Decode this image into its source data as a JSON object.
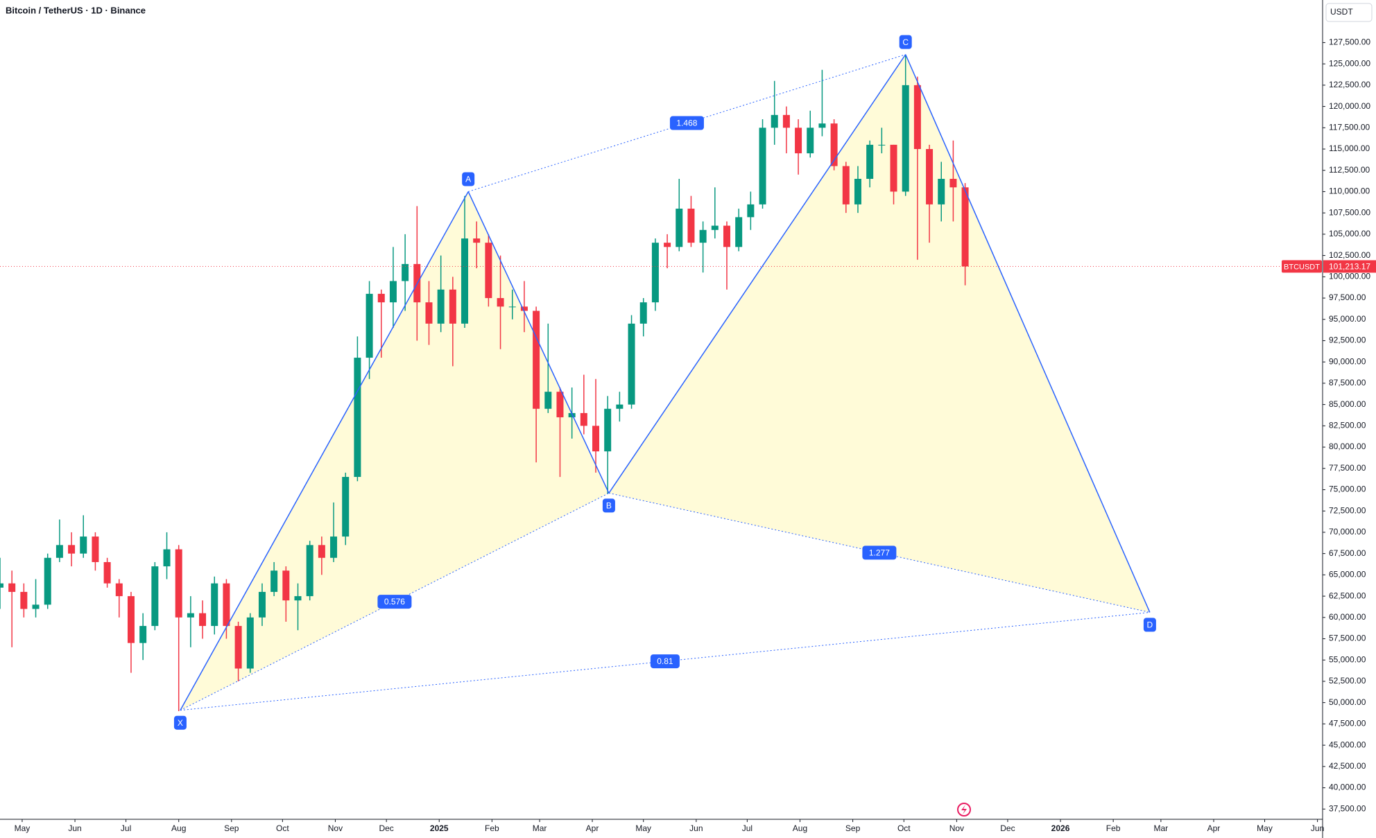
{
  "chart_data": {
    "type": "candlestick",
    "title": "Bitcoin / TetherUS · 1D · Binance",
    "currency": "USDT",
    "symbol": "BTCUSDT",
    "last_price": 101213.17,
    "last_price_label": "101,213.17",
    "up_color": "#089981",
    "down_color": "#f23645",
    "pattern_color": "#2962ff",
    "grid": false,
    "categories": [
      null,
      null,
      null,
      null,
      null,
      null,
      null,
      null,
      null,
      null,
      null,
      null,
      null,
      null,
      null,
      null,
      null,
      null,
      null,
      null,
      null,
      null,
      null,
      null,
      null,
      null,
      null,
      null,
      null,
      null,
      null,
      null,
      null,
      null,
      null,
      null,
      null,
      null,
      null,
      null,
      null,
      null,
      null,
      null,
      null,
      null,
      null,
      null,
      null,
      null,
      null,
      null,
      null,
      null,
      null,
      null,
      null,
      null,
      null,
      null,
      null,
      null,
      null,
      null,
      null,
      null,
      null,
      null,
      null,
      null,
      null,
      null,
      null,
      null,
      null,
      null,
      null,
      null,
      null,
      null,
      null,
      null
    ],
    "open": [
      63500,
      64000,
      63000,
      61000,
      61500,
      67000,
      68500,
      67500,
      69500,
      66500,
      64000,
      62500,
      57000,
      59000,
      66000,
      68000,
      60000,
      60500,
      59000,
      64000,
      59000,
      54000,
      60000,
      63000,
      65500,
      62000,
      62500,
      68500,
      67000,
      69500,
      76500,
      90500,
      98000,
      97000,
      99500,
      101500,
      97000,
      94500,
      98500,
      94500,
      104500,
      104000,
      97500,
      96500,
      96500,
      96000,
      84500,
      86500,
      83500,
      84000,
      82500,
      79500,
      84500,
      85000,
      94500,
      97000,
      104000,
      103500,
      108000,
      104000,
      105500,
      106000,
      103500,
      107000,
      108500,
      117500,
      119000,
      117500,
      114500,
      117500,
      118000,
      113000,
      108500,
      111500,
      115500,
      115500,
      110000,
      122500,
      115000,
      108500,
      111500,
      110500
    ],
    "high": [
      67000,
      65500,
      64000,
      64500,
      67500,
      71500,
      70000,
      72000,
      70000,
      67000,
      64500,
      63000,
      60500,
      66500,
      70000,
      68500,
      62500,
      62000,
      64800,
      64500,
      59500,
      60500,
      64000,
      66500,
      66000,
      64000,
      69000,
      69500,
      73500,
      77000,
      93000,
      99500,
      98500,
      103500,
      105000,
      108300,
      99500,
      102500,
      100000,
      109500,
      106500,
      105000,
      102500,
      98500,
      99500,
      96500,
      94500,
      87000,
      87000,
      88500,
      88000,
      86000,
      86500,
      95500,
      97500,
      104500,
      105000,
      111500,
      109500,
      106500,
      110500,
      106500,
      108000,
      110000,
      118500,
      123000,
      120000,
      118500,
      119500,
      124300,
      118500,
      113500,
      113000,
      116000,
      117500,
      115500,
      126100,
      123500,
      115500,
      113500,
      116000,
      111000
    ],
    "low": [
      61000,
      56500,
      60000,
      60000,
      61000,
      66500,
      66000,
      67000,
      65500,
      63500,
      60000,
      53500,
      55000,
      58500,
      64500,
      49000,
      56500,
      57500,
      58000,
      57500,
      52500,
      53500,
      59000,
      62500,
      59500,
      58500,
      62000,
      65000,
      66500,
      68500,
      76000,
      88000,
      90500,
      94000,
      96000,
      92500,
      92000,
      93500,
      89500,
      94000,
      101000,
      96500,
      91500,
      95000,
      93500,
      78200,
      84000,
      76500,
      81000,
      81500,
      77000,
      74500,
      83000,
      84500,
      93000,
      96000,
      101000,
      103000,
      103500,
      100500,
      104500,
      98500,
      103000,
      105500,
      108000,
      115500,
      114500,
      112000,
      114000,
      116500,
      112500,
      107500,
      107500,
      110500,
      114500,
      108500,
      109500,
      102000,
      104000,
      106500,
      106500,
      99000
    ],
    "close": [
      64000,
      63000,
      61000,
      61500,
      67000,
      68500,
      67500,
      69500,
      66500,
      64000,
      62500,
      57000,
      59000,
      66000,
      68000,
      60000,
      60500,
      59000,
      64000,
      59000,
      54000,
      60000,
      63000,
      65500,
      62000,
      62500,
      68500,
      67000,
      69500,
      76500,
      90500,
      98000,
      97000,
      99500,
      101500,
      97000,
      94500,
      98500,
      94500,
      104500,
      104000,
      97500,
      96500,
      96500,
      96000,
      84500,
      86500,
      83500,
      84000,
      82500,
      79500,
      84500,
      85000,
      94500,
      97000,
      104000,
      103500,
      108000,
      104000,
      105500,
      106000,
      103500,
      107000,
      108500,
      117500,
      119000,
      117500,
      114500,
      117500,
      118000,
      113000,
      108500,
      111500,
      115500,
      115500,
      110000,
      122500,
      115000,
      108500,
      111500,
      110500,
      101213.17
    ],
    "xlim": [
      0,
      111
    ],
    "xticks": [
      {
        "value": 1.86,
        "label": "May"
      },
      {
        "value": 6.29,
        "label": "Jun"
      },
      {
        "value": 10.57,
        "label": "Jul"
      },
      {
        "value": 15.0,
        "label": "Aug"
      },
      {
        "value": 19.43,
        "label": "Sep"
      },
      {
        "value": 23.71,
        "label": "Oct"
      },
      {
        "value": 28.14,
        "label": "Nov"
      },
      {
        "value": 32.43,
        "label": "Dec"
      },
      {
        "value": 36.86,
        "label": "2025"
      },
      {
        "value": 41.29,
        "label": "Feb"
      },
      {
        "value": 45.29,
        "label": "Mar"
      },
      {
        "value": 49.71,
        "label": "Apr"
      },
      {
        "value": 54.0,
        "label": "May"
      },
      {
        "value": 58.43,
        "label": "Jun"
      },
      {
        "value": 62.71,
        "label": "Jul"
      },
      {
        "value": 67.14,
        "label": "Aug"
      },
      {
        "value": 71.57,
        "label": "Sep"
      },
      {
        "value": 75.86,
        "label": "Oct"
      },
      {
        "value": 80.29,
        "label": "Nov"
      },
      {
        "value": 84.57,
        "label": "Dec"
      },
      {
        "value": 89.0,
        "label": "2026"
      },
      {
        "value": 93.43,
        "label": "Feb"
      },
      {
        "value": 97.43,
        "label": "Mar"
      },
      {
        "value": 101.86,
        "label": "Apr"
      },
      {
        "value": 106.14,
        "label": "May"
      },
      {
        "value": 110.57,
        "label": "Jun"
      }
    ],
    "ylim": [
      36300,
      132500
    ],
    "yticks": [
      {
        "value": 37500,
        "label": "37,500.00"
      },
      {
        "value": 40000,
        "label": "40,000.00"
      },
      {
        "value": 42500,
        "label": "42,500.00"
      },
      {
        "value": 45000,
        "label": "45,000.00"
      },
      {
        "value": 47500,
        "label": "47,500.00"
      },
      {
        "value": 50000,
        "label": "50,000.00"
      },
      {
        "value": 52500,
        "label": "52,500.00"
      },
      {
        "value": 55000,
        "label": "55,000.00"
      },
      {
        "value": 57500,
        "label": "57,500.00"
      },
      {
        "value": 60000,
        "label": "60,000.00"
      },
      {
        "value": 62500,
        "label": "62,500.00"
      },
      {
        "value": 65000,
        "label": "65,000.00"
      },
      {
        "value": 67500,
        "label": "67,500.00"
      },
      {
        "value": 70000,
        "label": "70,000.00"
      },
      {
        "value": 72500,
        "label": "72,500.00"
      },
      {
        "value": 75000,
        "label": "75,000.00"
      },
      {
        "value": 77500,
        "label": "77,500.00"
      },
      {
        "value": 80000,
        "label": "80,000.00"
      },
      {
        "value": 82500,
        "label": "82,500.00"
      },
      {
        "value": 85000,
        "label": "85,000.00"
      },
      {
        "value": 87500,
        "label": "87,500.00"
      },
      {
        "value": 90000,
        "label": "90,000.00"
      },
      {
        "value": 92500,
        "label": "92,500.00"
      },
      {
        "value": 95000,
        "label": "95,000.00"
      },
      {
        "value": 97500,
        "label": "97,500.00"
      },
      {
        "value": 100000,
        "label": "100,000.00"
      },
      {
        "value": 102500,
        "label": "102,500.00"
      },
      {
        "value": 105000,
        "label": "105,000.00"
      },
      {
        "value": 107500,
        "label": "107,500.00"
      },
      {
        "value": 110000,
        "label": "110,000.00"
      },
      {
        "value": 112500,
        "label": "112,500.00"
      },
      {
        "value": 115000,
        "label": "115,000.00"
      },
      {
        "value": 117500,
        "label": "117,500.00"
      },
      {
        "value": 120000,
        "label": "120,000.00"
      },
      {
        "value": 122500,
        "label": "122,500.00"
      },
      {
        "value": 125000,
        "label": "125,000.00"
      },
      {
        "value": 127500,
        "label": "127,500.00"
      }
    ],
    "pattern": {
      "points": [
        {
          "label": "X",
          "x": 15.13,
          "y": 49100
        },
        {
          "label": "A",
          "x": 39.3,
          "y": 110000
        },
        {
          "label": "B",
          "x": 51.1,
          "y": 74600
        },
        {
          "label": "C",
          "x": 76.0,
          "y": 126100
        },
        {
          "label": "D",
          "x": 96.5,
          "y": 60600
        }
      ],
      "ratios": [
        0.576,
        1.468,
        1.277,
        0.81
      ]
    }
  }
}
